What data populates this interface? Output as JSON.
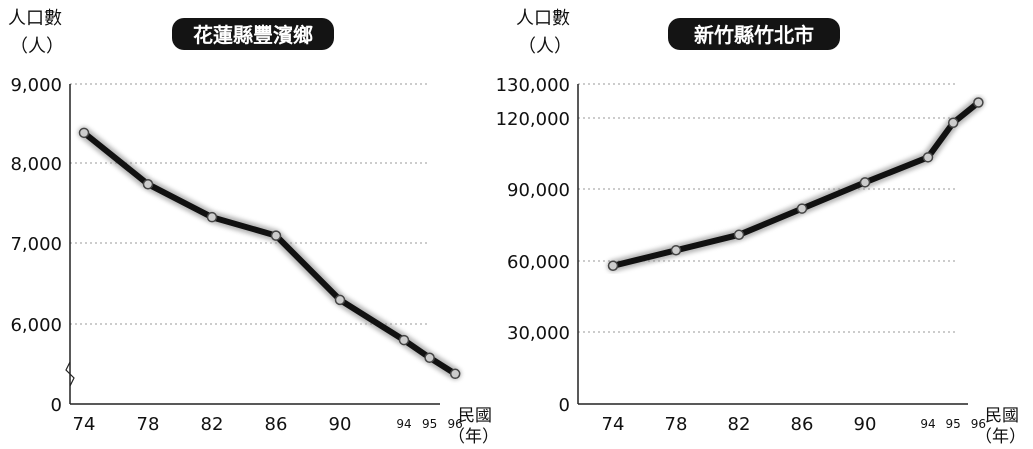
{
  "chart_data": [
    {
      "type": "line",
      "title": "花蓮縣豐濱鄉",
      "ylabel_line1": "人口數",
      "ylabel_line2": "（人）",
      "xlabel_line1": "民國",
      "xlabel_line2": "（年）",
      "x": [
        74,
        78,
        82,
        86,
        90,
        94,
        95,
        96
      ],
      "x_tick_labels": [
        "74",
        "78",
        "82",
        "86",
        "90",
        "94",
        "95",
        "96"
      ],
      "y_tick_labels": [
        "0",
        "6,000",
        "7,000",
        "8,000",
        "9,000"
      ],
      "values": [
        8380,
        7740,
        7330,
        7100,
        6300,
        5800,
        5580,
        5380
      ],
      "grid": true,
      "axis_break": true,
      "colors": {
        "line": "#111111",
        "marker": "#cccccc"
      }
    },
    {
      "type": "line",
      "title": "新竹縣竹北市",
      "ylabel_line1": "人口數",
      "ylabel_line2": "（人）",
      "xlabel_line1": "民國",
      "xlabel_line2": "（年）",
      "x": [
        74,
        78,
        82,
        86,
        90,
        94,
        95,
        96
      ],
      "x_tick_labels": [
        "74",
        "78",
        "82",
        "86",
        "90",
        "94",
        "95",
        "96"
      ],
      "y_tick_labels": [
        "0",
        "30,000",
        "60,000",
        "90,000",
        "120,000",
        "130,000"
      ],
      "values": [
        58000,
        64500,
        71000,
        82000,
        93000,
        103500,
        118000,
        126500
      ],
      "ylim": [
        0,
        130000
      ],
      "grid": true,
      "colors": {
        "line": "#111111",
        "marker": "#cccccc"
      }
    }
  ]
}
